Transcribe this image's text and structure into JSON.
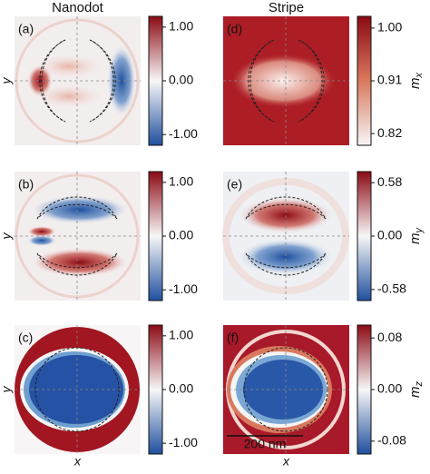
{
  "column_titles": [
    "Nanodot",
    "Stripe"
  ],
  "chart_data": [
    {
      "type": "heatmap",
      "title": "(a)",
      "ylabel": "y",
      "colormap": [
        "#8b0a14",
        "#f7f7f7",
        "#1f4f9e"
      ],
      "clim": [
        -1.2,
        1.2
      ],
      "cticks": [
        {
          "value": 1.0,
          "label": "1.00"
        },
        {
          "value": 0,
          "label": "0.00"
        },
        {
          "value": -1.0,
          "label": "-1.00"
        }
      ]
    },
    {
      "type": "heatmap",
      "title": "(b)",
      "ylabel": "y",
      "colormap": [
        "#8b0a14",
        "#f7f7f7",
        "#1f4f9e"
      ],
      "clim": [
        -1.2,
        1.2
      ],
      "cticks": [
        {
          "value": 1.0,
          "label": "1.00"
        },
        {
          "value": 0,
          "label": "0.00"
        },
        {
          "value": -1.0,
          "label": "-1.00"
        }
      ]
    },
    {
      "type": "heatmap",
      "title": "(c)",
      "ylabel": "y",
      "xlabel": "x",
      "colormap": [
        "#8b0a14",
        "#f7f7f7",
        "#1f4f9e"
      ],
      "clim": [
        -1.2,
        1.2
      ],
      "cticks": [
        {
          "value": 1.0,
          "label": "1.00"
        },
        {
          "value": 0,
          "label": "0.00"
        },
        {
          "value": -1.0,
          "label": "-1.00"
        }
      ]
    },
    {
      "type": "heatmap",
      "title": "(d)",
      "colorbar_label": {
        "base": "m",
        "sub": "x"
      },
      "colormap": [
        "#8b0a14",
        "#d9795d",
        "#f7f7f7"
      ],
      "clim": [
        0.8,
        1.02
      ],
      "cticks": [
        {
          "value": 1.0,
          "label": "1.00"
        },
        0.91,
        0.82
      ]
    },
    {
      "type": "heatmap",
      "title": "(e)",
      "colorbar_label": {
        "base": "m",
        "sub": "y"
      },
      "colormap": [
        "#8b0a14",
        "#f7f7f7",
        "#1f4f9e"
      ],
      "clim": [
        -0.7,
        0.7
      ],
      "cticks": [
        0.58,
        {
          "value": 0,
          "label": "0.00"
        },
        -0.58
      ]
    },
    {
      "type": "heatmap",
      "title": "(f)",
      "xlabel": "x",
      "annotation": "200 nm",
      "colorbar_label": {
        "base": "m",
        "sub": "z"
      },
      "colormap": [
        "#8b0a14",
        "#f7f7f7",
        "#1f4f9e"
      ],
      "clim": [
        -0.1,
        0.1
      ],
      "cticks": [
        0.08,
        {
          "value": 0,
          "label": "0.00"
        },
        -0.08
      ]
    }
  ]
}
